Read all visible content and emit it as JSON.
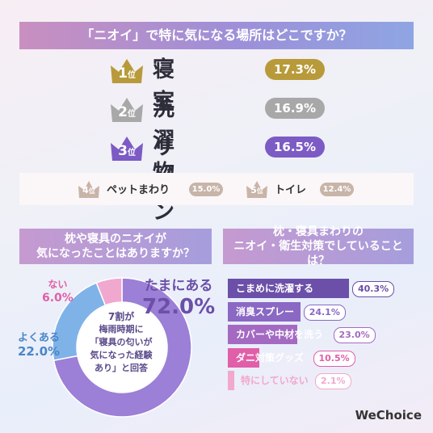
{
  "colors": {
    "gold": "#b89a3a",
    "silver": "#a8a8a8",
    "purple": "#7c5bc4",
    "minor": "#c8b4a8"
  },
  "title": "「ニオイ」で特に気になる場所はどこですか？",
  "rank_suffix": "位",
  "top3": [
    {
      "rank": "1",
      "label": "寝室",
      "value": "17.3%"
    },
    {
      "rank": "2",
      "label": "洗濯物",
      "value": "16.9%"
    },
    {
      "rank": "3",
      "label": "リビング",
      "value": "16.5%"
    }
  ],
  "minor": [
    {
      "rank": "4",
      "label": "ペットまわり",
      "value": "15.0%"
    },
    {
      "rank": "5",
      "label": "トイレ",
      "value": "12.4%"
    }
  ],
  "question2": {
    "line1": "枕や寝具のニオイが",
    "line2": "気になったことはありますか？"
  },
  "question3": {
    "line1": "枕・寝具まわりの",
    "line2": "ニオイ・衛生対策でしていることは？"
  },
  "donut_labels": [
    {
      "label": "たまにある",
      "value": "72.0%"
    },
    {
      "label": "よくある",
      "value": "22.0%"
    },
    {
      "label": "ない",
      "value": "6.0%"
    }
  ],
  "center_note": [
    "7割が",
    "梅雨時期に",
    "「寝具の匂いが",
    "気になった経験",
    "あり」と回答"
  ],
  "chart_data": [
    {
      "type": "bar",
      "categories": [
        "寝室",
        "洗濯物",
        "リビング",
        "ペットまわり",
        "トイレ"
      ],
      "values": [
        17.3,
        16.9,
        16.5,
        15.0,
        12.4
      ]
    },
    {
      "type": "pie",
      "categories": [
        "たまにある",
        "よくある",
        "ない"
      ],
      "values": [
        72.0,
        22.0,
        6.0
      ],
      "colors": [
        "#9c7fd6",
        "#7fb3e8",
        "#f0a8cf"
      ]
    },
    {
      "type": "bar",
      "categories": [
        "こまめに洗濯する",
        "消臭スプレー",
        "カバーや中材を洗う",
        "ダニ対策グッズ",
        "特にしていない"
      ],
      "values": [
        40.3,
        24.1,
        23.0,
        10.5,
        2.1
      ],
      "colors": [
        "#6b4fa8",
        "#8a68c4",
        "#a46ac2",
        "#e05fa8",
        "#f2a8cc"
      ],
      "value_labels": [
        "40.3%",
        "24.1%",
        "23.0%",
        "10.5%",
        "2.1%"
      ]
    }
  ],
  "logo": "WeChoice"
}
